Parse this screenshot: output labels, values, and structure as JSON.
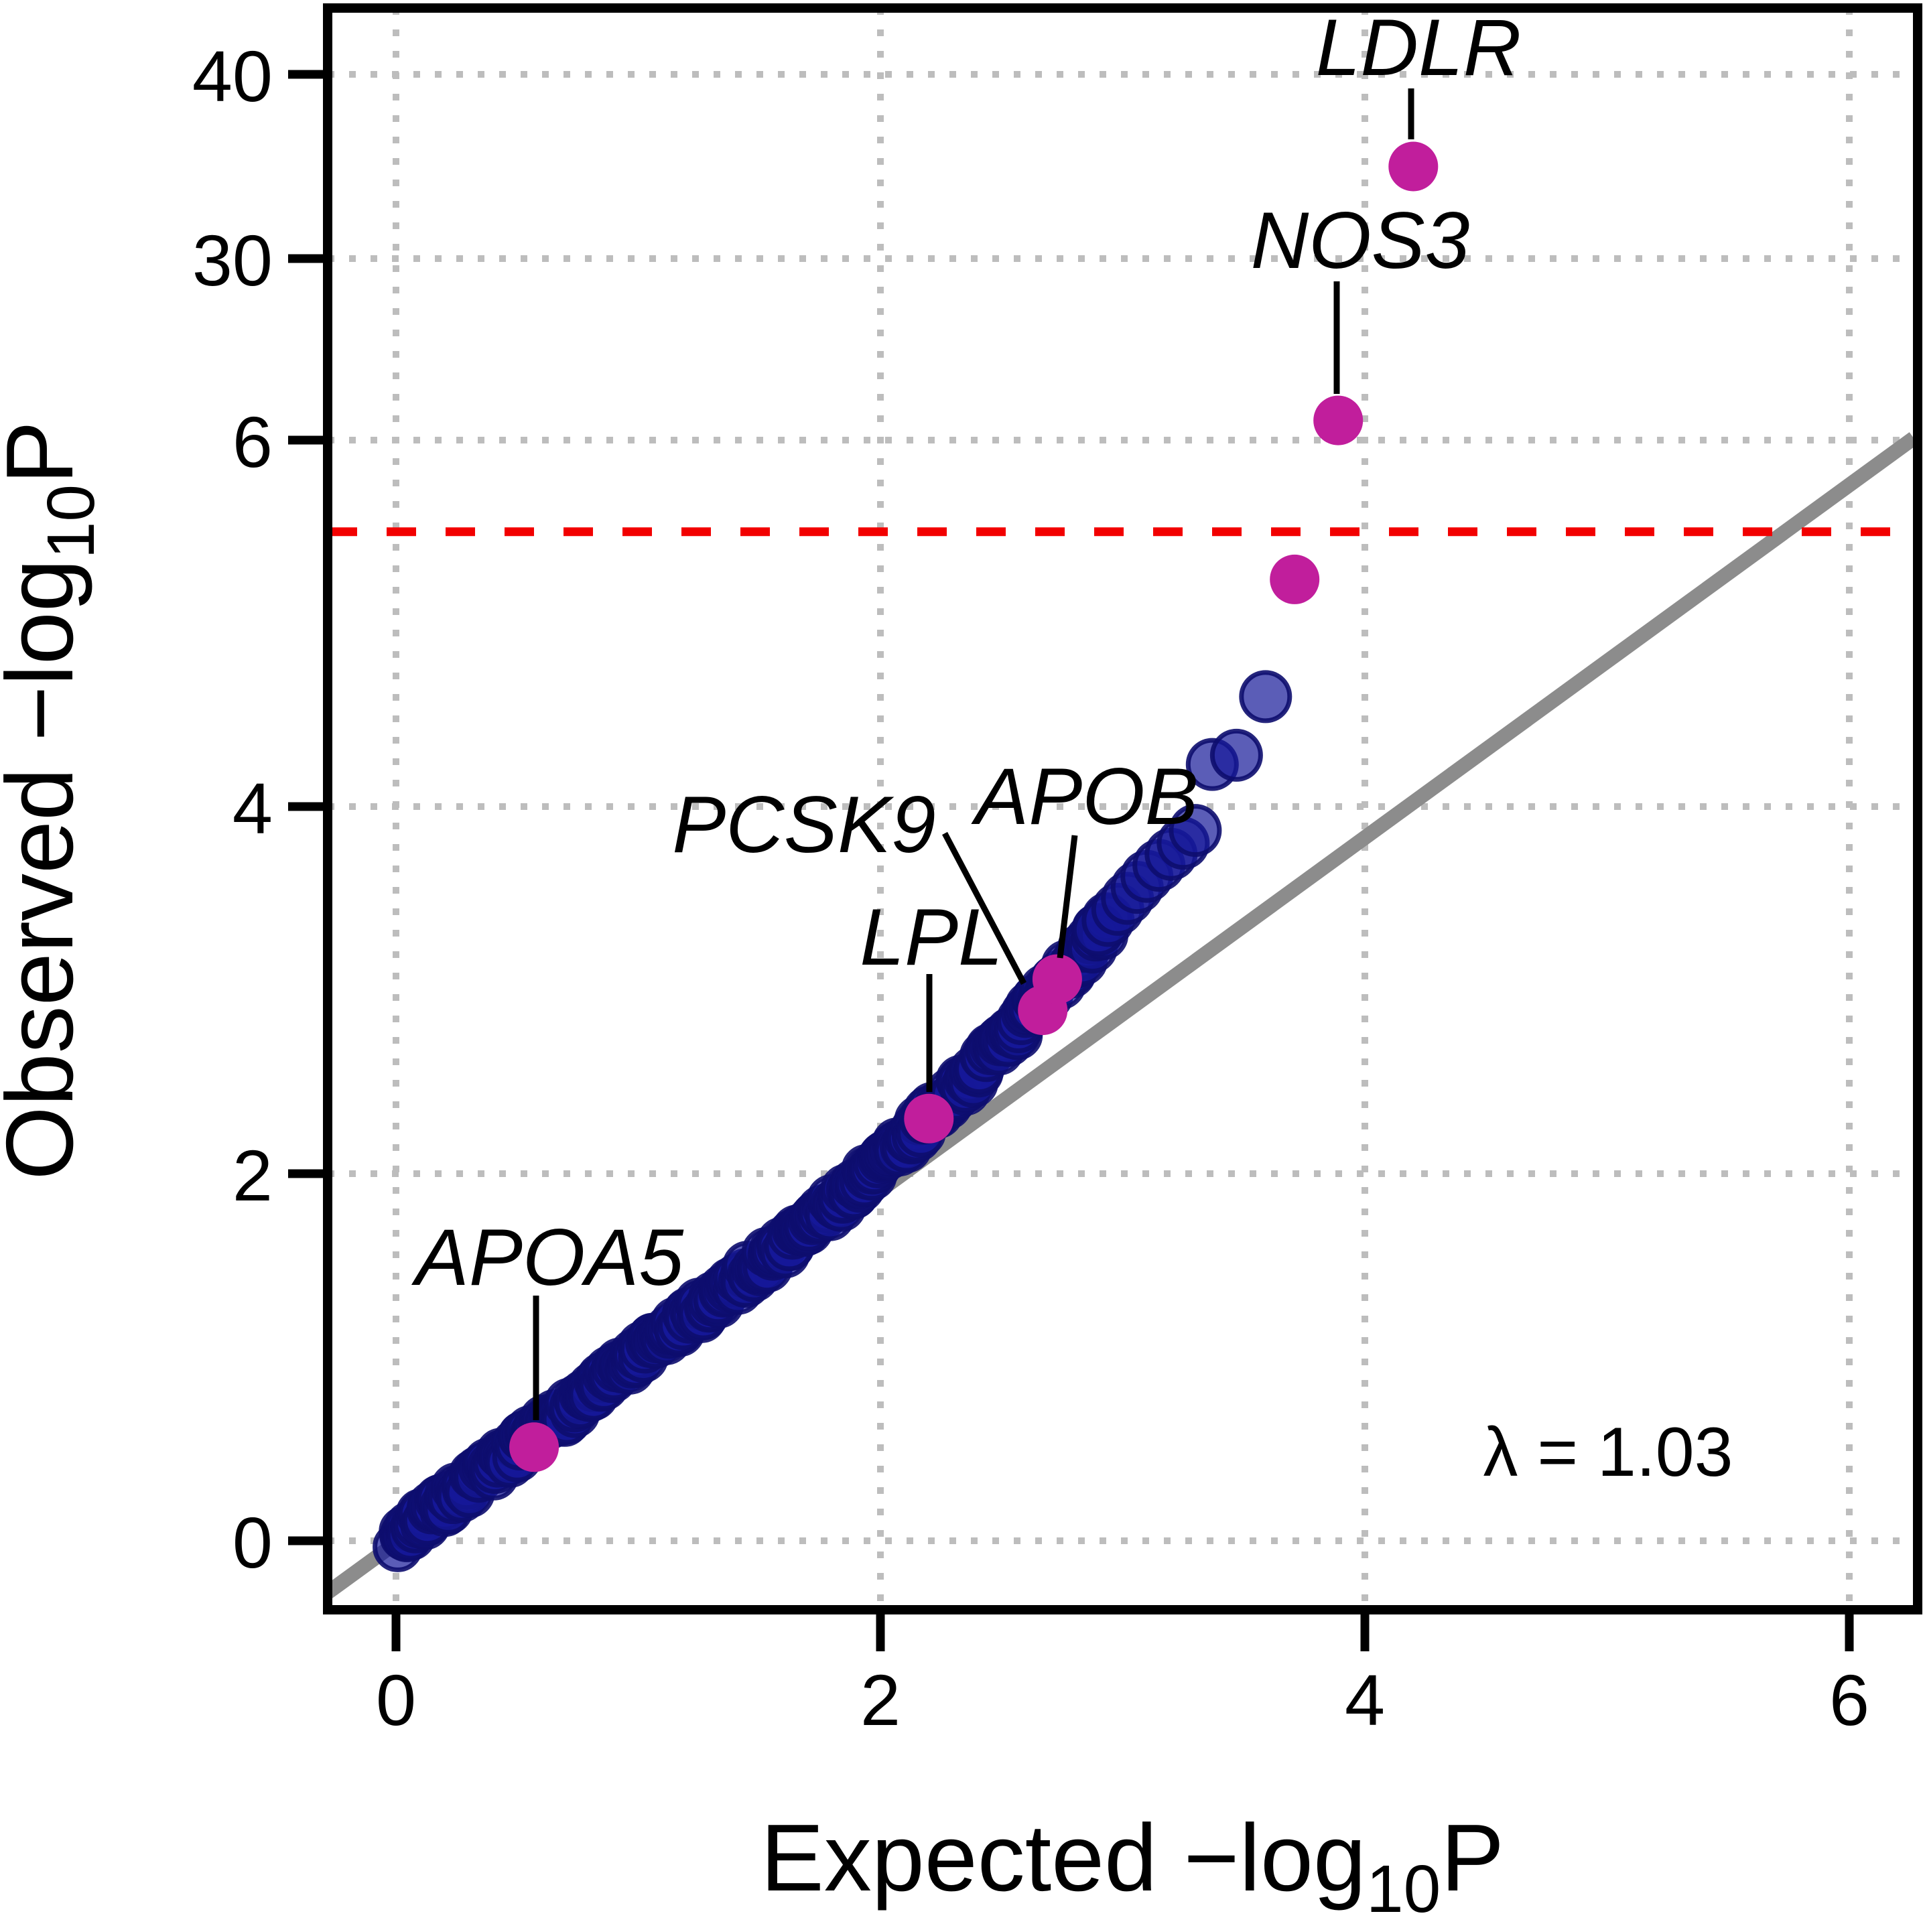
{
  "labels": {
    "x_title_main": "Expected −log",
    "y_title_main": "Observed −log",
    "log_sub": "10",
    "p_suffix": "P",
    "lambda": "λ = 1.03"
  },
  "chart_data": {
    "type": "scatter",
    "title": "QQ plot of observed vs expected −log10 P-values",
    "xlabel": "Expected −log10P",
    "ylabel": "Observed −log10P",
    "x_ticks": [
      0,
      2,
      4,
      6
    ],
    "y_ticks": [
      0,
      2,
      4,
      6,
      30,
      40
    ],
    "y_axis_note": "y axis is compressed/broken above 6 (ticks 6, 30, 40)",
    "xlim": [
      -0.28,
      6.27
    ],
    "grid": true,
    "grid_style": "dotted",
    "lambda_value": 1.03,
    "threshold_line": {
      "y": 5.5,
      "style": "dashed",
      "color": "#f20000"
    },
    "identity_line": {
      "slope": 1,
      "intercept": 0,
      "color": "#8c8c8c"
    },
    "highlighted_genes": [
      {
        "name": "APOA5",
        "expected": 0.57,
        "observed": 0.51
      },
      {
        "name": "LPL",
        "expected": 2.2,
        "observed": 2.3
      },
      {
        "name": "PCSK9",
        "expected": 2.67,
        "observed": 2.89
      },
      {
        "name": "APOB",
        "expected": 2.73,
        "observed": 3.06
      },
      {
        "name": "",
        "expected": 3.71,
        "observed": 5.24
      },
      {
        "name": "NOS3",
        "expected": 3.89,
        "observed": 8.6
      },
      {
        "name": "LDLR",
        "expected": 4.2,
        "observed": 35.0
      }
    ],
    "tail_points": [
      [
        2.9,
        3.33
      ],
      [
        2.94,
        3.38
      ],
      [
        2.98,
        3.44
      ],
      [
        3.02,
        3.5
      ],
      [
        3.06,
        3.56
      ],
      [
        3.1,
        3.62
      ],
      [
        3.15,
        3.68
      ],
      [
        3.2,
        3.74
      ],
      [
        3.25,
        3.8
      ],
      [
        3.3,
        3.87
      ],
      [
        3.37,
        4.23
      ],
      [
        3.47,
        4.28
      ],
      [
        3.59,
        4.6
      ]
    ],
    "dense_band": {
      "description": "dense cloud of SNP-level points hugging the identity line",
      "e_min": 0.015,
      "e_max": 2.93,
      "n": 290,
      "model": "observed = expected + 0.204*max(0, expected-1.5)^2"
    },
    "colors": {
      "point_fill": "rgba(22,24,153,0.70)",
      "point_stroke": "rgba(13,13,110,0.90)",
      "highlight": "#c11e9c",
      "identity": "#8c8c8c",
      "threshold": "#f20000",
      "grid": "#bdbdbd",
      "axis": "#000000"
    }
  }
}
